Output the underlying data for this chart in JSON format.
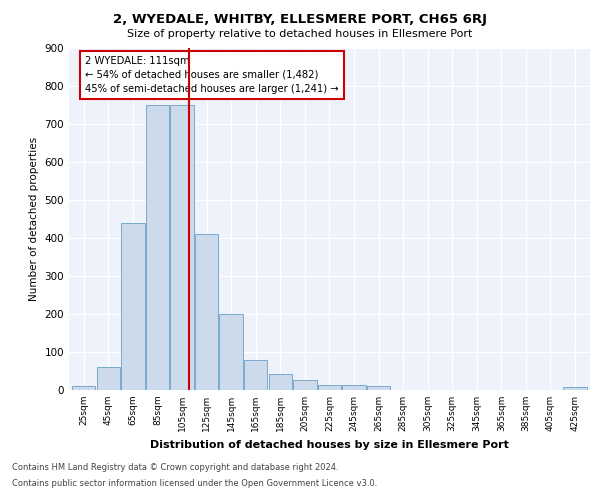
{
  "title": "2, WYEDALE, WHITBY, ELLESMERE PORT, CH65 6RJ",
  "subtitle": "Size of property relative to detached houses in Ellesmere Port",
  "xlabel": "Distribution of detached houses by size in Ellesmere Port",
  "ylabel": "Number of detached properties",
  "categories": [
    "25sqm",
    "45sqm",
    "65sqm",
    "85sqm",
    "105sqm",
    "125sqm",
    "145sqm",
    "165sqm",
    "185sqm",
    "205sqm",
    "225sqm",
    "245sqm",
    "265sqm",
    "285sqm",
    "305sqm",
    "325sqm",
    "345sqm",
    "365sqm",
    "385sqm",
    "405sqm",
    "425sqm"
  ],
  "values": [
    10,
    60,
    440,
    750,
    750,
    410,
    200,
    78,
    42,
    25,
    13,
    13,
    10,
    0,
    0,
    0,
    0,
    0,
    0,
    0,
    8
  ],
  "bar_color": "#ccdaeb",
  "bar_edge_color": "#7aaacc",
  "vline_x": 111,
  "vline_color": "#cc0000",
  "annotation_text": "2 WYEDALE: 111sqm\n← 54% of detached houses are smaller (1,482)\n45% of semi-detached houses are larger (1,241) →",
  "annotation_box_color": "#ffffff",
  "annotation_box_edge": "#cc0000",
  "ylim": [
    0,
    900
  ],
  "yticks": [
    0,
    100,
    200,
    300,
    400,
    500,
    600,
    700,
    800,
    900
  ],
  "footnote1": "Contains HM Land Registry data © Crown copyright and database right 2024.",
  "footnote2": "Contains public sector information licensed under the Open Government Licence v3.0.",
  "bg_color": "#eef2fb",
  "fig_bg_color": "#ffffff",
  "bin_centers": [
    25,
    45,
    65,
    85,
    105,
    125,
    145,
    165,
    185,
    205,
    225,
    245,
    265,
    285,
    305,
    325,
    345,
    365,
    385,
    405,
    425
  ],
  "bin_width": 19
}
